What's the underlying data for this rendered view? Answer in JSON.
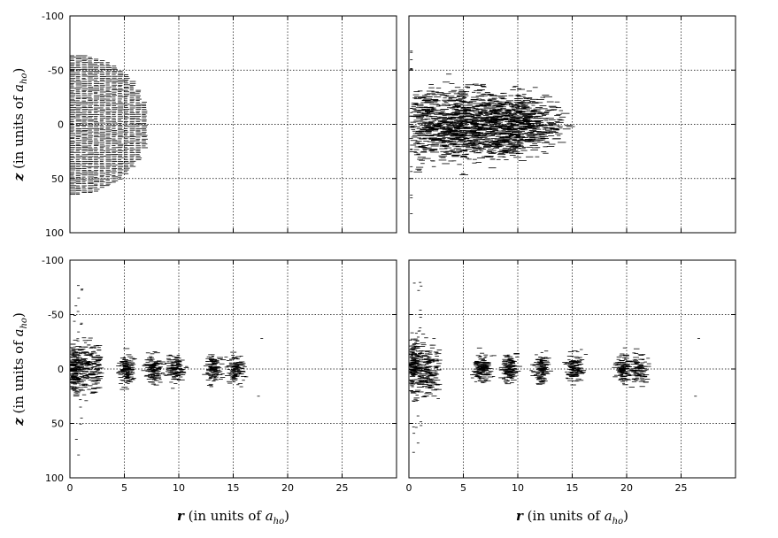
{
  "chart_data": [
    {
      "type": "scatter",
      "panel": "top-left",
      "xlim": [
        0,
        30
      ],
      "ylim": [
        -100,
        100
      ],
      "y_inverted": true,
      "xticks": [
        0,
        5,
        10,
        15,
        20,
        25
      ],
      "yticks": [
        -100,
        -50,
        0,
        50,
        100
      ],
      "grid": true,
      "ylabel_parts": [
        "z",
        " (in units of ",
        "a",
        "ho",
        ")"
      ],
      "series": [
        {
          "distribution": "dense half-ellipsoid",
          "r_max": 7,
          "z_half_extent": 65
        }
      ]
    },
    {
      "type": "scatter",
      "panel": "top-right",
      "xlim": [
        0,
        30
      ],
      "ylim": [
        -100,
        100
      ],
      "y_inverted": true,
      "xticks": [
        0,
        5,
        10,
        15,
        20,
        25
      ],
      "yticks": [
        -100,
        -50,
        0,
        50,
        100
      ],
      "grid": true,
      "series": [
        {
          "distribution": "spreading cloud",
          "r_max": 13.5,
          "z_half_extent": 62
        }
      ]
    },
    {
      "type": "scatter",
      "panel": "bottom-left",
      "xlim": [
        0,
        30
      ],
      "ylim": [
        -100,
        100
      ],
      "y_inverted": true,
      "xticks": [
        0,
        5,
        10,
        15,
        20,
        25
      ],
      "yticks": [
        -100,
        -50,
        0,
        50,
        100
      ],
      "grid": true,
      "xticklabels": [
        "0",
        "5",
        "10",
        "15",
        "20",
        "25"
      ],
      "yticklabels": [
        "-100",
        "-50",
        "0",
        "50",
        "100"
      ],
      "ylabel_parts": [
        "z",
        " (in units of ",
        "a",
        "ho",
        ")"
      ],
      "xlabel_parts": [
        "r",
        " (in units of ",
        "a",
        "ho",
        ")"
      ],
      "series": [
        {
          "distribution": "clustered shells",
          "clusters_r": [
            1,
            5,
            7.5,
            9.5,
            13,
            15
          ],
          "r_max": 17.5
        }
      ]
    },
    {
      "type": "scatter",
      "panel": "bottom-right",
      "xlim": [
        0,
        30
      ],
      "ylim": [
        -100,
        100
      ],
      "y_inverted": true,
      "xticks": [
        0,
        5,
        10,
        15,
        20,
        25
      ],
      "yticks": [
        -100,
        -50,
        0,
        50,
        100
      ],
      "grid": true,
      "xticklabels": [
        "0",
        "5",
        "10",
        "15",
        "20",
        "25"
      ],
      "xlabel_parts": [
        "r",
        " (in units of ",
        "a",
        "ho",
        ")"
      ],
      "series": [
        {
          "distribution": "clustered shells",
          "clusters_r": [
            1,
            6.5,
            9,
            12,
            15,
            19.5,
            21
          ],
          "r_max": 26.5
        }
      ]
    }
  ],
  "top_left_yticklabels": [
    "-100",
    "-50",
    "0",
    "50",
    "100"
  ],
  "top_right_note": ""
}
